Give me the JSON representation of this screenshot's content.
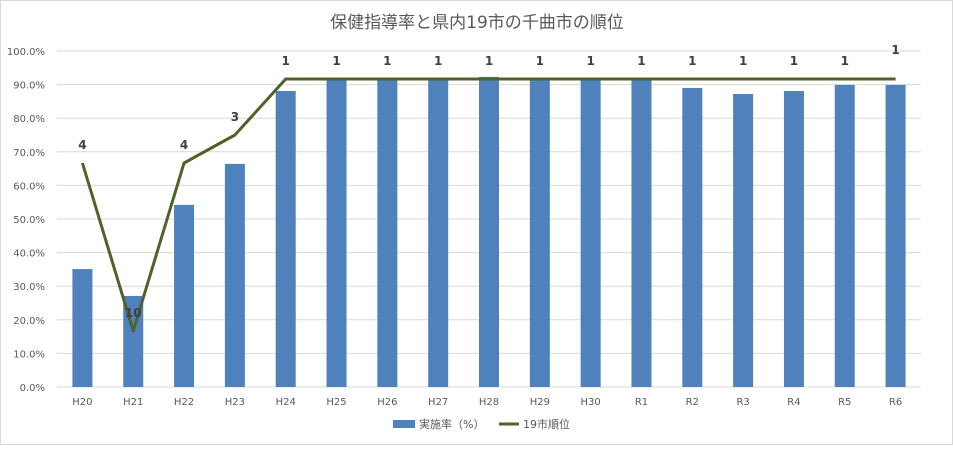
{
  "chart_data": {
    "type": "bar+line",
    "title": "保健指導率と県内19市の千曲市の順位",
    "categories": [
      "H20",
      "H21",
      "H22",
      "H23",
      "H24",
      "H25",
      "H26",
      "H27",
      "H28",
      "H29",
      "H30",
      "R1",
      "R2",
      "R3",
      "R4",
      "R5",
      "R6"
    ],
    "series": [
      {
        "name": "実施率（%）",
        "type": "bar",
        "color": "#4f81bd",
        "values": [
          35.1,
          27.1,
          54.2,
          66.4,
          88.1,
          92.0,
          92.0,
          92.0,
          92.3,
          92.0,
          92.0,
          92.0,
          89.0,
          87.2,
          88.1,
          89.9,
          89.9
        ]
      },
      {
        "name": "19市順位",
        "type": "line",
        "color": "#4f6228",
        "axis": "secondary-hidden-reversed",
        "values": [
          4,
          10,
          4,
          3,
          1,
          1,
          1,
          1,
          1,
          1,
          1,
          1,
          1,
          1,
          1,
          1,
          1
        ],
        "data_labels": [
          "4",
          "10",
          "4",
          "3",
          "1",
          "1",
          "1",
          "1",
          "1",
          "1",
          "1",
          "1",
          "1",
          "1",
          "1",
          "1",
          "1"
        ]
      }
    ],
    "y_ticks": [
      "0.0%",
      "10.0%",
      "20.0%",
      "30.0%",
      "40.0%",
      "50.0%",
      "60.0%",
      "70.0%",
      "80.0%",
      "90.0%",
      "100.0%"
    ],
    "ylim": [
      0,
      100
    ],
    "secondary_ylim_reversed": [
      12,
      0
    ],
    "grid": true,
    "legend": "bottom"
  }
}
